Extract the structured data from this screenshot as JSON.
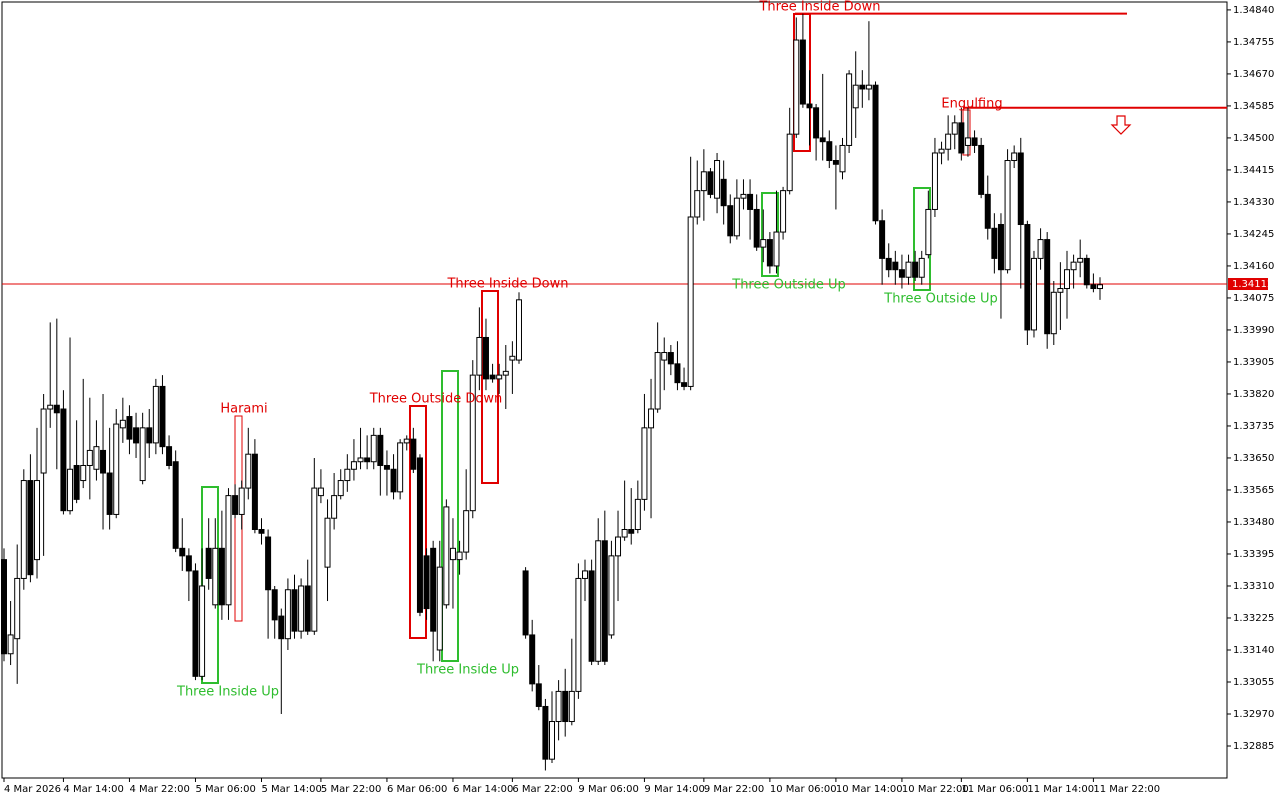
{
  "chart_data": {
    "type": "candlestick",
    "up_color": "#ffffff",
    "down_color": "#000000",
    "outline_color": "#000000",
    "price_line_color": "#e00000",
    "ylim": [
      1.328,
      1.34861
    ],
    "yticks": [
      {
        "value": 1.3484,
        "label": "1.34840"
      },
      1.34755,
      {
        "value": 1.3467,
        "label": "1.34670"
      },
      1.34585,
      {
        "value": 1.345,
        "label": "1.34500"
      },
      1.34415,
      {
        "value": 1.3433,
        "label": "1.34330"
      },
      1.34245,
      {
        "value": 1.3416,
        "label": "1.34160"
      },
      1.34075,
      {
        "value": 1.3399,
        "label": "1.33990"
      },
      1.33905,
      {
        "value": 1.3382,
        "label": "1.33820"
      },
      1.33735,
      {
        "value": 1.3365,
        "label": "1.33650"
      },
      1.33565,
      {
        "value": 1.3348,
        "label": "1.33480"
      },
      1.33395,
      {
        "value": 1.3331,
        "label": "1.33310"
      },
      1.33225,
      {
        "value": 1.3314,
        "label": "1.33140"
      },
      1.33055,
      {
        "value": 1.3297,
        "label": "1.32970"
      },
      1.32885
    ],
    "last_price": 1.34112,
    "levels": [
      1.3483,
      1.3458
    ],
    "annotations": [
      {
        "text": "Three Inside Down",
        "color": "#e00000"
      },
      {
        "text": "Engulfing",
        "color": "#e00000"
      },
      {
        "text": "Harami",
        "color": "#e00000"
      },
      {
        "text": "Three Outside Down",
        "color": "#e00000"
      },
      {
        "text": "Three Inside Down",
        "color": "#e00000"
      },
      {
        "text": "Three Outside Up",
        "color": "#2ebd2e"
      },
      {
        "text": "Three Outside Up",
        "color": "#2ebd2e"
      },
      {
        "text": "Three Inside Up",
        "color": "#2ebd2e"
      },
      {
        "text": "Three Inside Up",
        "color": "#2ebd2e"
      }
    ],
    "categories": [
      "4 Mar 2026",
      null,
      null,
      null,
      null,
      null,
      null,
      null,
      null,
      "4 Mar 14:00",
      null,
      null,
      null,
      null,
      null,
      null,
      null,
      null,
      null,
      "4 Mar 22:00",
      null,
      null,
      null,
      null,
      null,
      null,
      null,
      null,
      null,
      "5 Mar 06:00",
      null,
      null,
      null,
      null,
      null,
      null,
      null,
      null,
      null,
      "5 Mar 14:00",
      null,
      null,
      null,
      null,
      null,
      null,
      null,
      null,
      "5 Mar 22:00",
      null,
      null,
      null,
      null,
      null,
      null,
      null,
      null,
      null,
      "6 Mar 06:00",
      null,
      null,
      null,
      null,
      null,
      null,
      null,
      null,
      null,
      "6 Mar 14:00",
      null,
      null,
      null,
      null,
      null,
      null,
      null,
      null,
      "6 Mar 22:00",
      null,
      null,
      null,
      null,
      null,
      null,
      null,
      null,
      null,
      "9 Mar 06:00",
      null,
      null,
      null,
      null,
      null,
      null,
      null,
      null,
      null,
      "9 Mar 14:00",
      null,
      null,
      null,
      null,
      null,
      null,
      null,
      null,
      "9 Mar 22:00",
      null,
      null,
      null,
      null,
      null,
      null,
      null,
      null,
      null,
      "10 Mar 06:00",
      null,
      null,
      null,
      null,
      null,
      null,
      null,
      null,
      null,
      "10 Mar 14:00",
      null,
      null,
      null,
      null,
      null,
      null,
      null,
      null,
      null,
      "10 Mar 22:00",
      null,
      null,
      null,
      null,
      null,
      null,
      null,
      null,
      "11 Mar 06:00",
      null,
      null,
      null,
      null,
      null,
      null,
      null,
      null,
      null,
      "11 Mar 14:00",
      null,
      null,
      null,
      null,
      null,
      null,
      null,
      null,
      null,
      "11 Mar 22:00",
      null
    ],
    "candles": [
      [
        1.3338,
        1.3341,
        1.3311,
        1.3313
      ],
      [
        1.3313,
        1.3327,
        1.331,
        1.3318
      ],
      [
        1.3317,
        1.3342,
        1.3305,
        1.3333
      ],
      [
        1.3333,
        1.3362,
        1.333,
        1.3359
      ],
      [
        1.3359,
        1.3366,
        1.3332,
        1.3334
      ],
      [
        1.3338,
        1.3373,
        1.3333,
        1.3359
      ],
      [
        1.3361,
        1.3382,
        1.3339,
        1.3378
      ],
      [
        1.3378,
        1.3401,
        1.3373,
        1.3379
      ],
      [
        1.3379,
        1.3402,
        1.3362,
        1.3377
      ],
      [
        1.3378,
        1.3383,
        1.335,
        1.3351
      ],
      [
        1.3351,
        1.3397,
        1.335,
        1.3362
      ],
      [
        1.3363,
        1.3375,
        1.3353,
        1.3354
      ],
      [
        1.3359,
        1.3386,
        1.3357,
        1.3363
      ],
      [
        1.3363,
        1.3381,
        1.3354,
        1.3367
      ],
      [
        1.3362,
        1.3375,
        1.3359,
        1.3368
      ],
      [
        1.3367,
        1.3382,
        1.3346,
        1.3361
      ],
      [
        1.3361,
        1.3373,
        1.3346,
        1.335
      ],
      [
        1.335,
        1.3378,
        1.3349,
        1.3374
      ],
      [
        1.3373,
        1.3381,
        1.3369,
        1.3375
      ],
      [
        1.3376,
        1.3379,
        1.3366,
        1.337
      ],
      [
        1.3373,
        1.3377,
        1.3365,
        1.3369
      ],
      [
        1.3359,
        1.3377,
        1.3358,
        1.3373
      ],
      [
        1.3373,
        1.3378,
        1.3365,
        1.3369
      ],
      [
        1.3369,
        1.3386,
        1.3366,
        1.3384
      ],
      [
        1.3384,
        1.3387,
        1.3366,
        1.3368
      ],
      [
        1.3368,
        1.3371,
        1.3362,
        1.3363
      ],
      [
        1.3364,
        1.3367,
        1.334,
        1.3341
      ],
      [
        1.3341,
        1.3349,
        1.3335,
        1.3339
      ],
      [
        1.3339,
        1.3341,
        1.3327,
        1.3335
      ],
      [
        1.3335,
        1.3337,
        1.3306,
        1.3307
      ],
      [
        1.3307,
        1.3341,
        1.3306,
        1.3331
      ],
      [
        1.3341,
        1.3349,
        1.333,
        1.3333
      ],
      [
        1.3326,
        1.3349,
        1.3325,
        1.3341
      ],
      [
        1.3341,
        1.3351,
        1.3322,
        1.3326
      ],
      [
        1.3326,
        1.3357,
        1.3322,
        1.3355
      ],
      [
        1.3355,
        1.3358,
        1.3349,
        1.335
      ],
      [
        1.335,
        1.3359,
        1.3346,
        1.3357
      ],
      [
        1.3357,
        1.3373,
        1.3354,
        1.3366
      ],
      [
        1.3366,
        1.337,
        1.3345,
        1.3346
      ],
      [
        1.3346,
        1.3349,
        1.3342,
        1.3345
      ],
      [
        1.3344,
        1.3346,
        1.3317,
        1.333
      ],
      [
        1.333,
        1.3331,
        1.3317,
        1.3322
      ],
      [
        1.3323,
        1.3325,
        1.3297,
        1.3317
      ],
      [
        1.3317,
        1.3333,
        1.3314,
        1.333
      ],
      [
        1.333,
        1.3334,
        1.3317,
        1.3319
      ],
      [
        1.3319,
        1.3333,
        1.3317,
        1.3331
      ],
      [
        1.3331,
        1.3338,
        1.3318,
        1.3319
      ],
      [
        1.3319,
        1.3365,
        1.3318,
        1.3357
      ],
      [
        1.3355,
        1.3362,
        1.3353,
        1.3357
      ],
      [
        1.3336,
        1.3354,
        1.3327,
        1.3349
      ],
      [
        1.3349,
        1.3361,
        1.3346,
        1.3355
      ],
      [
        1.3355,
        1.3362,
        1.3354,
        1.3359
      ],
      [
        1.3359,
        1.3366,
        1.3356,
        1.3362
      ],
      [
        1.3362,
        1.337,
        1.3359,
        1.3364
      ],
      [
        1.3364,
        1.3373,
        1.3362,
        1.3365
      ],
      [
        1.3365,
        1.3371,
        1.3362,
        1.3364
      ],
      [
        1.3364,
        1.3373,
        1.3362,
        1.3371
      ],
      [
        1.3371,
        1.3373,
        1.3355,
        1.3363
      ],
      [
        1.3363,
        1.3367,
        1.3355,
        1.3362
      ],
      [
        1.3362,
        1.3366,
        1.3354,
        1.3356
      ],
      [
        1.3356,
        1.337,
        1.3354,
        1.3369
      ],
      [
        1.3369,
        1.3371,
        1.3367,
        1.337
      ],
      [
        1.337,
        1.3373,
        1.3361,
        1.3362
      ],
      [
        1.3365,
        1.3366,
        1.3323,
        1.3324
      ],
      [
        1.3339,
        1.3341,
        1.3322,
        1.3325
      ],
      [
        1.3341,
        1.3343,
        1.3311,
        1.3319
      ],
      [
        1.3314,
        1.3343,
        1.3311,
        1.3336
      ],
      [
        1.3326,
        1.3354,
        1.3325,
        1.3352
      ],
      [
        1.3338,
        1.3349,
        1.3325,
        1.3341
      ],
      [
        1.3338,
        1.3343,
        1.3334,
        1.334
      ],
      [
        1.334,
        1.3362,
        1.3338,
        1.3351
      ],
      [
        1.3351,
        1.3391,
        1.3349,
        1.3387
      ],
      [
        1.3387,
        1.3405,
        1.3383,
        1.3397
      ],
      [
        1.3397,
        1.3402,
        1.3383,
        1.3386
      ],
      [
        1.3387,
        1.339,
        1.3385,
        1.3386
      ],
      [
        1.3386,
        1.339,
        1.3382,
        1.3387
      ],
      [
        1.3387,
        1.3395,
        1.3378,
        1.3388
      ],
      [
        1.3391,
        1.3396,
        1.3382,
        1.3392
      ],
      [
        1.3391,
        1.3409,
        1.339,
        1.3407
      ],
      [
        1.3335,
        1.3336,
        1.3317,
        1.3318
      ],
      [
        1.3318,
        1.3322,
        1.3303,
        1.3305
      ],
      [
        1.3305,
        1.331,
        1.3298,
        1.3299
      ],
      [
        1.3299,
        1.3301,
        1.3282,
        1.3285
      ],
      [
        1.3285,
        1.3303,
        1.3284,
        1.3295
      ],
      [
        1.3295,
        1.3306,
        1.329,
        1.3303
      ],
      [
        1.3303,
        1.3309,
        1.3291,
        1.3295
      ],
      [
        1.3295,
        1.3317,
        1.3294,
        1.3303
      ],
      [
        1.3303,
        1.3337,
        1.3301,
        1.3333
      ],
      [
        1.3333,
        1.3338,
        1.3327,
        1.3335
      ],
      [
        1.3335,
        1.3338,
        1.331,
        1.3311
      ],
      [
        1.3311,
        1.3349,
        1.331,
        1.3343
      ],
      [
        1.3343,
        1.3351,
        1.331,
        1.3311
      ],
      [
        1.3318,
        1.3343,
        1.3317,
        1.3339
      ],
      [
        1.3339,
        1.3351,
        1.3327,
        1.3344
      ],
      [
        1.3344,
        1.3359,
        1.3343,
        1.3346
      ],
      [
        1.3346,
        1.3357,
        1.3342,
        1.3345
      ],
      [
        1.3346,
        1.3359,
        1.3345,
        1.3354
      ],
      [
        1.3354,
        1.3382,
        1.3351,
        1.3373
      ],
      [
        1.3373,
        1.3386,
        1.3349,
        1.3378
      ],
      [
        1.3378,
        1.3401,
        1.3377,
        1.3393
      ],
      [
        1.3391,
        1.3397,
        1.3383,
        1.3393
      ],
      [
        1.3393,
        1.3395,
        1.3387,
        1.339
      ],
      [
        1.339,
        1.3396,
        1.3383,
        1.3385
      ],
      [
        1.3385,
        1.3389,
        1.3383,
        1.3384
      ],
      [
        1.3384,
        1.3445,
        1.3383,
        1.3429
      ],
      [
        1.3429,
        1.3444,
        1.3427,
        1.3436
      ],
      [
        1.3436,
        1.3447,
        1.3428,
        1.3441
      ],
      [
        1.3441,
        1.3442,
        1.3434,
        1.3435
      ],
      [
        1.3434,
        1.3446,
        1.343,
        1.3444
      ],
      [
        1.3439,
        1.3444,
        1.3427,
        1.3432
      ],
      [
        1.3432,
        1.3435,
        1.3422,
        1.3424
      ],
      [
        1.3424,
        1.3439,
        1.3423,
        1.3434
      ],
      [
        1.3434,
        1.3439,
        1.3431,
        1.3435
      ],
      [
        1.3435,
        1.3439,
        1.3423,
        1.3431
      ],
      [
        1.3431,
        1.3435,
        1.342,
        1.3421
      ],
      [
        1.3421,
        1.3431,
        1.3417,
        1.3423
      ],
      [
        1.3423,
        1.3425,
        1.3414,
        1.3416
      ],
      [
        1.3416,
        1.3436,
        1.3414,
        1.3425
      ],
      [
        1.3425,
        1.3437,
        1.3423,
        1.3436
      ],
      [
        1.3436,
        1.3458,
        1.3435,
        1.3451
      ],
      [
        1.3451,
        1.3482,
        1.345,
        1.3476
      ],
      [
        1.3476,
        1.3483,
        1.3458,
        1.3459
      ],
      [
        1.3459,
        1.3468,
        1.3448,
        1.3458
      ],
      [
        1.3458,
        1.3459,
        1.3444,
        1.345
      ],
      [
        1.345,
        1.3467,
        1.3444,
        1.3449
      ],
      [
        1.3449,
        1.3452,
        1.3442,
        1.3444
      ],
      [
        1.3444,
        1.3448,
        1.3431,
        1.3443
      ],
      [
        1.3441,
        1.345,
        1.3439,
        1.3448
      ],
      [
        1.3448,
        1.3468,
        1.3446,
        1.3467
      ],
      [
        1.3458,
        1.3473,
        1.345,
        1.3464
      ],
      [
        1.3464,
        1.3468,
        1.3458,
        1.3463
      ],
      [
        1.3463,
        1.3481,
        1.346,
        1.3464
      ],
      [
        1.3464,
        1.3465,
        1.3427,
        1.3428
      ],
      [
        1.3428,
        1.3431,
        1.3411,
        1.3418
      ],
      [
        1.3418,
        1.3422,
        1.3413,
        1.3415
      ],
      [
        1.3417,
        1.342,
        1.3411,
        1.3415
      ],
      [
        1.3415,
        1.3419,
        1.341,
        1.3413
      ],
      [
        1.3413,
        1.3419,
        1.3411,
        1.3417
      ],
      [
        1.3417,
        1.342,
        1.3412,
        1.3413
      ],
      [
        1.3413,
        1.342,
        1.3411,
        1.3418
      ],
      [
        1.3419,
        1.3436,
        1.3418,
        1.3431
      ],
      [
        1.3431,
        1.345,
        1.3429,
        1.3446
      ],
      [
        1.3446,
        1.3449,
        1.3443,
        1.3447
      ],
      [
        1.3447,
        1.3456,
        1.3444,
        1.3451
      ],
      [
        1.3451,
        1.3456,
        1.3447,
        1.3454
      ],
      [
        1.3454,
        1.3458,
        1.3444,
        1.3446
      ],
      [
        1.3448,
        1.3458,
        1.3445,
        1.345
      ],
      [
        1.345,
        1.3452,
        1.3446,
        1.3448
      ],
      [
        1.3448,
        1.345,
        1.3434,
        1.3435
      ],
      [
        1.3435,
        1.344,
        1.3423,
        1.3426
      ],
      [
        1.3426,
        1.343,
        1.3414,
        1.3418
      ],
      [
        1.3427,
        1.343,
        1.3402,
        1.3415
      ],
      [
        1.3415,
        1.3447,
        1.3414,
        1.3444
      ],
      [
        1.3444,
        1.3448,
        1.3442,
        1.3446
      ],
      [
        1.3446,
        1.345,
        1.341,
        1.3427
      ],
      [
        1.3427,
        1.3428,
        1.3395,
        1.3399
      ],
      [
        1.3399,
        1.342,
        1.3397,
        1.3418
      ],
      [
        1.3418,
        1.3426,
        1.3415,
        1.3423
      ],
      [
        1.3423,
        1.3425,
        1.3394,
        1.3398
      ],
      [
        1.3398,
        1.3412,
        1.3395,
        1.3409
      ],
      [
        1.3409,
        1.3417,
        1.3399,
        1.341
      ],
      [
        1.341,
        1.342,
        1.3402,
        1.3415
      ],
      [
        1.3415,
        1.3419,
        1.341,
        1.3417
      ],
      [
        1.3417,
        1.3423,
        1.3413,
        1.3418
      ],
      [
        1.3418,
        1.3419,
        1.341,
        1.3411
      ],
      [
        1.3411,
        1.3414,
        1.3409,
        1.341
      ],
      [
        1.341,
        1.3413,
        1.3407,
        1.3411
      ]
    ]
  }
}
